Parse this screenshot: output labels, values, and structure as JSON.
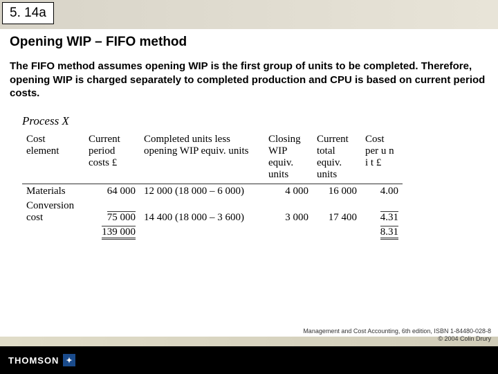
{
  "slide_number": "5. 14a",
  "title": "Opening WIP – FIFO method",
  "body": "The FIFO method assumes opening WIP is the first group of units to be completed. Therefore, opening WIP is charged separately to completed production and CPU is based on current period costs.",
  "process": "Process X",
  "headers": {
    "c1": "Cost element",
    "c2": "Current period costs £",
    "c3": "Completed units less opening WIP equiv. units",
    "c4": "Closing WIP equiv. units",
    "c5": "Current total equiv. units",
    "c6": "Cost per u n i t £"
  },
  "rows": {
    "materials": {
      "label": "Materials",
      "cost": "64 000",
      "completed": "12 000 (18 000 – 6 000)",
      "closing": "4 000",
      "total": "16 000",
      "cpu": "4.00"
    },
    "conversion": {
      "label": "Conversion cost",
      "cost": "75 000",
      "completed": "14 400 (18 000 – 3 600)",
      "closing": "3 000",
      "total": "17 400",
      "cpu": "4.31"
    }
  },
  "totals": {
    "cost": "139 000",
    "cpu": "8.31"
  },
  "footer": {
    "brand": "THOMSON",
    "line1": "Management and Cost Accounting, 6th edition, ISBN 1-84480-028-8",
    "line2": "© 2004 Colin Drury"
  }
}
